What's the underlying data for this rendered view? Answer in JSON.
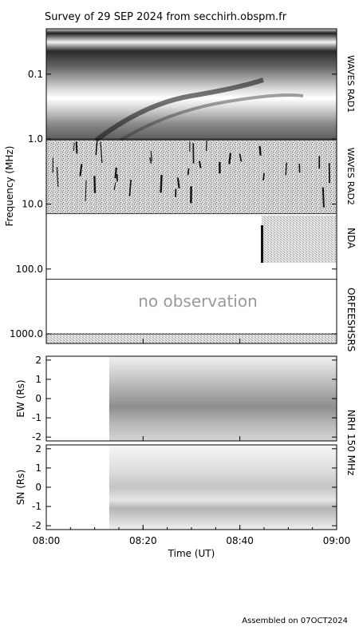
{
  "chart_data": {
    "title": "Survey of 29 SEP 2024 from secchirh.obspm.fr",
    "footer": "Assembled on 07OCT2024",
    "time_axis": {
      "label": "Time (UT)",
      "range": [
        "08:00",
        "09:00"
      ],
      "ticks": [
        "08:00",
        "08:20",
        "08:40",
        "09:00"
      ]
    },
    "dynamic_spectrum": {
      "type": "heatmap",
      "ylabel": "Frequency (MHz)",
      "scale": "log",
      "ylim": [
        0.02,
        1400
      ],
      "ticks": [
        {
          "value": 0.1,
          "label": "0.1"
        },
        {
          "value": 1,
          "label": "1.0"
        },
        {
          "value": 10,
          "label": "10.0"
        },
        {
          "value": 100,
          "label": "100.0"
        },
        {
          "value": 1000,
          "label": "1000.0"
        }
      ],
      "instruments": [
        {
          "name": "WAVES RAD1",
          "freq_range_mhz": [
            0.02,
            1.0
          ]
        },
        {
          "name": "WAVES RAD2",
          "freq_range_mhz": [
            1.0,
            14.0
          ]
        },
        {
          "name": "NDA",
          "freq_range_mhz": [
            14.0,
            80.0
          ]
        },
        {
          "name": "ORFEES",
          "freq_range_mhz": [
            144.0,
            1000.0
          ]
        },
        {
          "name": "HSRS",
          "freq_range_mhz": [
            1000.0,
            1400.0
          ]
        }
      ],
      "nda_data_start": "08:45",
      "no_data_text": "no observation"
    },
    "nrh": {
      "label": "NRH 150 MHz",
      "data_start": "08:13",
      "panels": [
        {
          "ylabel": "EW (Rs)",
          "ylim": [
            -2.2,
            2.2
          ],
          "ticks": [
            2,
            1,
            0,
            -1,
            -2
          ]
        },
        {
          "ylabel": "SN (Rs)",
          "ylim": [
            -2.2,
            2.2
          ],
          "ticks": [
            2,
            1,
            0,
            -1,
            -2
          ]
        }
      ]
    }
  }
}
